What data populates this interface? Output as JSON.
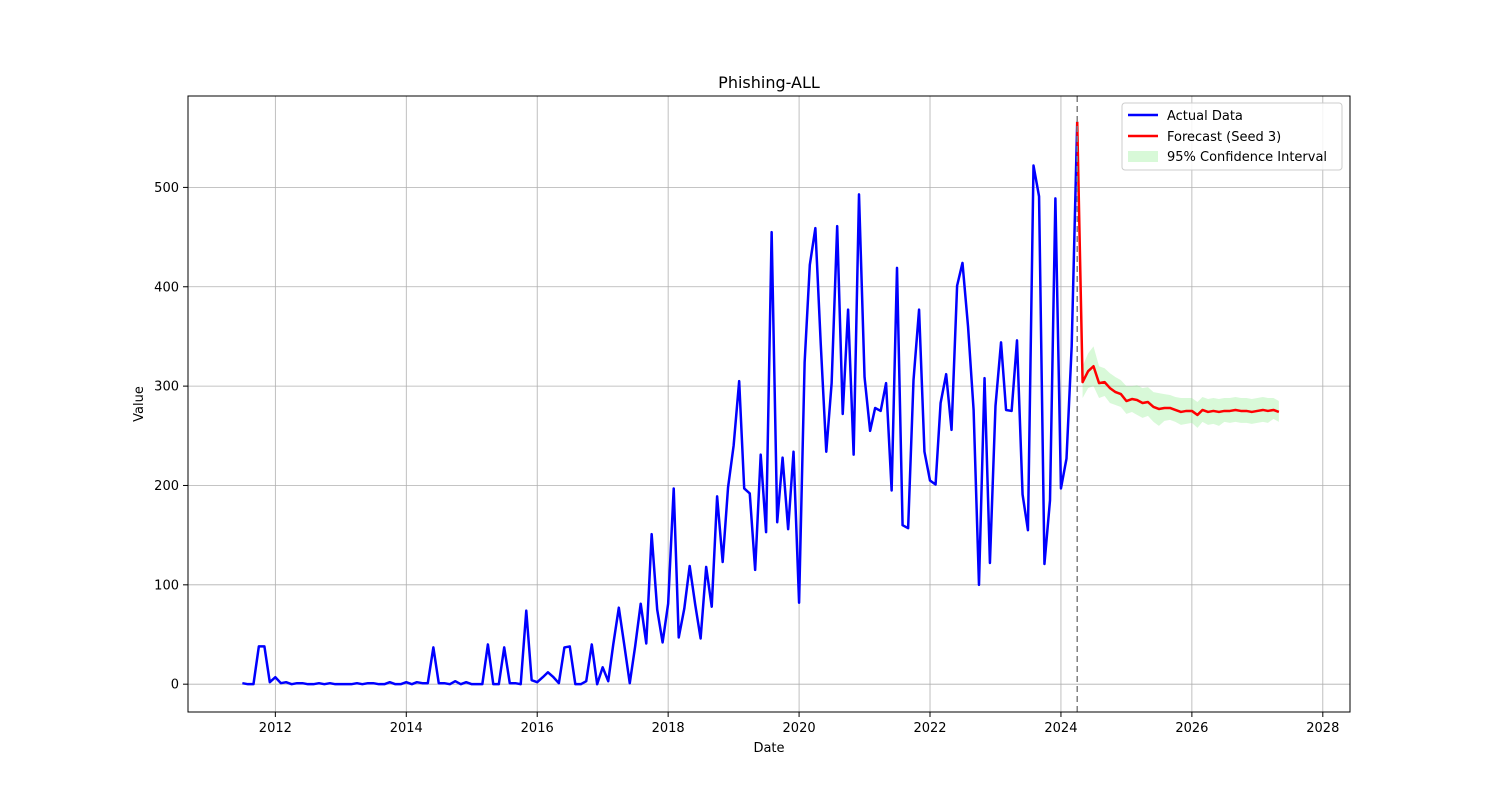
{
  "chart_data": {
    "type": "line",
    "title": "Phishing-ALL",
    "xlabel": "Date",
    "ylabel": "Value",
    "x_ticks": [
      "2012",
      "2014",
      "2016",
      "2018",
      "2020",
      "2022",
      "2024",
      "2026",
      "2028"
    ],
    "y_ticks": [
      0,
      100,
      200,
      300,
      400,
      500
    ],
    "xlim": [
      "2010-09-01",
      "2028-06-01"
    ],
    "ylim": [
      -28,
      592
    ],
    "grid": true,
    "legend_position": "top-right",
    "forecast_start": "2024-04-01",
    "colors": {
      "actual": "#0000ff",
      "forecast": "#ff0000",
      "ci_fill": "#90ee90",
      "divider": "#808080",
      "grid": "#b0b0b0"
    },
    "series": [
      {
        "name": "Actual Data",
        "x": [
          "2011-07",
          "2011-08",
          "2011-09",
          "2011-10",
          "2011-11",
          "2011-12",
          "2012-01",
          "2012-02",
          "2012-03",
          "2012-04",
          "2012-05",
          "2012-06",
          "2012-07",
          "2012-08",
          "2012-09",
          "2012-10",
          "2012-11",
          "2012-12",
          "2013-01",
          "2013-02",
          "2013-03",
          "2013-04",
          "2013-05",
          "2013-06",
          "2013-07",
          "2013-08",
          "2013-09",
          "2013-10",
          "2013-11",
          "2013-12",
          "2014-01",
          "2014-02",
          "2014-03",
          "2014-04",
          "2014-05",
          "2014-06",
          "2014-07",
          "2014-08",
          "2014-09",
          "2014-10",
          "2014-11",
          "2014-12",
          "2015-01",
          "2015-02",
          "2015-03",
          "2015-04",
          "2015-05",
          "2015-06",
          "2015-07",
          "2015-08",
          "2015-09",
          "2015-10",
          "2015-11",
          "2015-12",
          "2016-01",
          "2016-02",
          "2016-03",
          "2016-04",
          "2016-05",
          "2016-06",
          "2016-07",
          "2016-08",
          "2016-09",
          "2016-10",
          "2016-11",
          "2016-12",
          "2017-01",
          "2017-02",
          "2017-03",
          "2017-04",
          "2017-05",
          "2017-06",
          "2017-07",
          "2017-08",
          "2017-09",
          "2017-10",
          "2017-11",
          "2017-12",
          "2018-01",
          "2018-02",
          "2018-03",
          "2018-04",
          "2018-05",
          "2018-06",
          "2018-07",
          "2018-08",
          "2018-09",
          "2018-10",
          "2018-11",
          "2018-12",
          "2019-01",
          "2019-02",
          "2019-03",
          "2019-04",
          "2019-05",
          "2019-06",
          "2019-07",
          "2019-08",
          "2019-09",
          "2019-10",
          "2019-11",
          "2019-12",
          "2020-01",
          "2020-02",
          "2020-03",
          "2020-04",
          "2020-05",
          "2020-06",
          "2020-07",
          "2020-08",
          "2020-09",
          "2020-10",
          "2020-11",
          "2020-12",
          "2021-01",
          "2021-02",
          "2021-03",
          "2021-04",
          "2021-05",
          "2021-06",
          "2021-07",
          "2021-08",
          "2021-09",
          "2021-10",
          "2021-11",
          "2021-12",
          "2022-01",
          "2022-02",
          "2022-03",
          "2022-04",
          "2022-05",
          "2022-06",
          "2022-07",
          "2022-08",
          "2022-09",
          "2022-10",
          "2022-11",
          "2022-12",
          "2023-01",
          "2023-02",
          "2023-03",
          "2023-04",
          "2023-05",
          "2023-06",
          "2023-07",
          "2023-08",
          "2023-09",
          "2023-10",
          "2023-11",
          "2023-12",
          "2024-01",
          "2024-02",
          "2024-03",
          "2024-04"
        ],
        "values": [
          1,
          0,
          0,
          38,
          38,
          2,
          7,
          1,
          2,
          0,
          1,
          1,
          0,
          0,
          1,
          0,
          1,
          0,
          0,
          0,
          0,
          1,
          0,
          1,
          1,
          0,
          0,
          2,
          0,
          0,
          2,
          0,
          2,
          1,
          1,
          37,
          1,
          1,
          0,
          3,
          0,
          2,
          0,
          0,
          0,
          40,
          0,
          0,
          37,
          1,
          1,
          0,
          74,
          4,
          2,
          7,
          12,
          7,
          1,
          37,
          38,
          0,
          0,
          3,
          40,
          0,
          17,
          3,
          40,
          77,
          40,
          1,
          38,
          81,
          41,
          151,
          75,
          42,
          81,
          197,
          47,
          76,
          119,
          80,
          46,
          118,
          78,
          189,
          123,
          198,
          240,
          305,
          197,
          192,
          115,
          231,
          153,
          455,
          163,
          228,
          156,
          234,
          82,
          324,
          422,
          459,
          343,
          234,
          303,
          461,
          272,
          377,
          231,
          493,
          309,
          255,
          278,
          275,
          303,
          195,
          419,
          160,
          157,
          306,
          377,
          234,
          205,
          201,
          283,
          312,
          256,
          401,
          424,
          360,
          276,
          100,
          308,
          122,
          280,
          344,
          276,
          275,
          346,
          191,
          155,
          522,
          491,
          121,
          185,
          489,
          197,
          227,
          340,
          566
        ]
      },
      {
        "name": "Forecast (Seed 3)",
        "x": [
          "2024-04",
          "2024-05",
          "2024-06",
          "2024-07",
          "2024-08",
          "2024-09",
          "2024-10",
          "2024-11",
          "2024-12",
          "2025-01",
          "2025-02",
          "2025-03",
          "2025-04",
          "2025-05",
          "2025-06",
          "2025-07",
          "2025-08",
          "2025-09",
          "2025-10",
          "2025-11",
          "2025-12",
          "2026-01",
          "2026-02",
          "2026-03",
          "2026-04",
          "2026-05",
          "2026-06",
          "2026-07",
          "2026-08",
          "2026-09",
          "2026-10",
          "2026-11",
          "2026-12",
          "2027-01",
          "2027-02",
          "2027-03",
          "2027-04",
          "2027-05"
        ],
        "values": [
          566,
          304,
          315,
          320,
          303,
          304,
          298,
          294,
          292,
          285,
          287,
          286,
          283,
          284,
          279,
          277,
          278,
          278,
          276,
          274,
          275,
          275,
          271,
          276,
          274,
          275,
          274,
          275,
          275,
          276,
          275,
          275,
          274,
          275,
          276,
          275,
          276,
          274
        ]
      }
    ],
    "confidence_interval": {
      "name": "95% Confidence Interval",
      "x": [
        "2024-05",
        "2024-06",
        "2024-07",
        "2024-08",
        "2024-09",
        "2024-10",
        "2024-11",
        "2024-12",
        "2025-01",
        "2025-02",
        "2025-03",
        "2025-04",
        "2025-05",
        "2025-06",
        "2025-07",
        "2025-08",
        "2025-09",
        "2025-10",
        "2025-11",
        "2025-12",
        "2026-01",
        "2026-02",
        "2026-03",
        "2026-04",
        "2026-05",
        "2026-06",
        "2026-07",
        "2026-08",
        "2026-09",
        "2026-10",
        "2026-11",
        "2026-12",
        "2027-01",
        "2027-02",
        "2027-03",
        "2027-04",
        "2027-05"
      ],
      "lower": [
        288,
        298,
        300,
        288,
        290,
        283,
        281,
        279,
        272,
        274,
        271,
        268,
        270,
        264,
        260,
        265,
        266,
        264,
        261,
        262,
        263,
        258,
        264,
        261,
        262,
        260,
        264,
        263,
        264,
        263,
        263,
        262,
        263,
        264,
        263,
        267,
        264
      ],
      "upper": [
        320,
        333,
        340,
        320,
        318,
        313,
        309,
        306,
        300,
        300,
        301,
        298,
        299,
        294,
        293,
        292,
        291,
        289,
        288,
        288,
        288,
        284,
        289,
        287,
        288,
        287,
        288,
        288,
        289,
        288,
        288,
        287,
        288,
        289,
        288,
        288,
        285
      ]
    }
  }
}
